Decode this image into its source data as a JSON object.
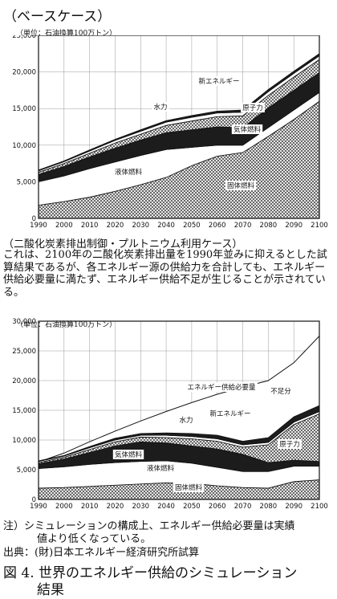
{
  "heading": {
    "title": "（ベースケース）"
  },
  "case2": {
    "title": "（二酸化炭素排出制御・プルトニウム利用ケース）"
  },
  "paragraph": "これは、2100年の二酸化炭素排出量を1990年並みに抑えるとした試算結果であるが、各エネルギー源の供給力を合計しても、エネルギー供給必要量に満たず、エネルギー供給不足が生じることが示されている。",
  "notes": {
    "note_line1": "注）シミュレーションの構成上、エネルギー供給必要量は実績",
    "note_line2": "値より低くなっている。",
    "source": "出典：(財)日本エネルギー経済研究所試算"
  },
  "figure": {
    "title_line1": "図 4.  世界のエネルギー供給のシミュレーション",
    "title_line2": "結果"
  },
  "colors": {
    "ink": "#111111",
    "paper": "#ffffff"
  },
  "chart_data": [
    {
      "type": "area",
      "unit_label": "（単位：石油換算100万トン）",
      "x": [
        1990,
        2000,
        2010,
        2020,
        2030,
        2040,
        2050,
        2060,
        2070,
        2080,
        2090,
        2100
      ],
      "ylim": [
        0,
        25000
      ],
      "yticks": [
        "0",
        "5,000",
        "10,000",
        "15,000",
        "20,000",
        "25,000"
      ],
      "grid": true,
      "series": [
        {
          "name": "固体燃料",
          "fill": "crosshatch",
          "values": [
            1800,
            2300,
            2900,
            3700,
            4600,
            5600,
            7200,
            8500,
            9000,
            11200,
            13500,
            16000
          ]
        },
        {
          "name": "液体燃料",
          "fill": "white",
          "values": [
            3200,
            3500,
            3900,
            4000,
            4000,
            3800,
            2500,
            1500,
            1000,
            1200,
            1300,
            1200
          ]
        },
        {
          "name": "気体燃料",
          "fill": "dark",
          "values": [
            1000,
            1300,
            1600,
            1900,
            2100,
            2300,
            2400,
            2500,
            2400,
            2700,
            2700,
            2700
          ]
        },
        {
          "name": "原子力",
          "fill": "crosshatch",
          "values": [
            300,
            400,
            500,
            700,
            800,
            1000,
            1200,
            1400,
            1600,
            1700,
            1800,
            1800
          ]
        },
        {
          "name": "水力",
          "fill": "white",
          "values": [
            200,
            250,
            300,
            350,
            400,
            450,
            500,
            500,
            500,
            500,
            500,
            500
          ]
        },
        {
          "name": "新エネルギー",
          "fill": "dark",
          "values": [
            100,
            100,
            150,
            150,
            200,
            200,
            250,
            250,
            300,
            300,
            300,
            300
          ]
        }
      ]
    },
    {
      "type": "area",
      "unit_label": "（単位：石油換算100万トン）",
      "x": [
        1990,
        2000,
        2010,
        2020,
        2030,
        2040,
        2050,
        2060,
        2070,
        2080,
        2090,
        2100
      ],
      "ylim": [
        0,
        30000
      ],
      "yticks": [
        "0",
        "5,000",
        "10,000",
        "15,000",
        "20,000",
        "25,000",
        "30,000"
      ],
      "grid": true,
      "series": [
        {
          "name": "固体燃料",
          "fill": "crosshatch",
          "values": [
            1900,
            2000,
            2200,
            2400,
            2600,
            2800,
            2700,
            2300,
            2000,
            1900,
            3000,
            3300
          ]
        },
        {
          "name": "液体燃料",
          "fill": "white",
          "values": [
            3300,
            3500,
            3700,
            3800,
            3800,
            3700,
            3400,
            3100,
            2700,
            2800,
            2600,
            2300
          ]
        },
        {
          "name": "気体燃料",
          "fill": "dark",
          "values": [
            800,
            1300,
            2000,
            2800,
            3300,
            3000,
            2900,
            3100,
            2900,
            1500,
            1000,
            800
          ]
        },
        {
          "name": "原子力",
          "fill": "crosshatch",
          "values": [
            200,
            300,
            500,
            700,
            800,
            900,
            1200,
            1300,
            1200,
            3000,
            6000,
            8000
          ]
        },
        {
          "name": "水力",
          "fill": "white",
          "values": [
            200,
            200,
            300,
            300,
            300,
            400,
            400,
            400,
            400,
            400,
            400,
            400
          ]
        },
        {
          "name": "新エネルギー",
          "fill": "dark",
          "values": [
            100,
            100,
            200,
            300,
            300,
            400,
            500,
            600,
            600,
            800,
            900,
            1000
          ]
        }
      ],
      "demand": {
        "name": "エネルギー供給必要量",
        "values": [
          6300,
          7800,
          9700,
          11500,
          13200,
          14800,
          16300,
          17700,
          18900,
          20000,
          23000,
          27500
        ]
      },
      "deficit_label": "不足分"
    }
  ]
}
